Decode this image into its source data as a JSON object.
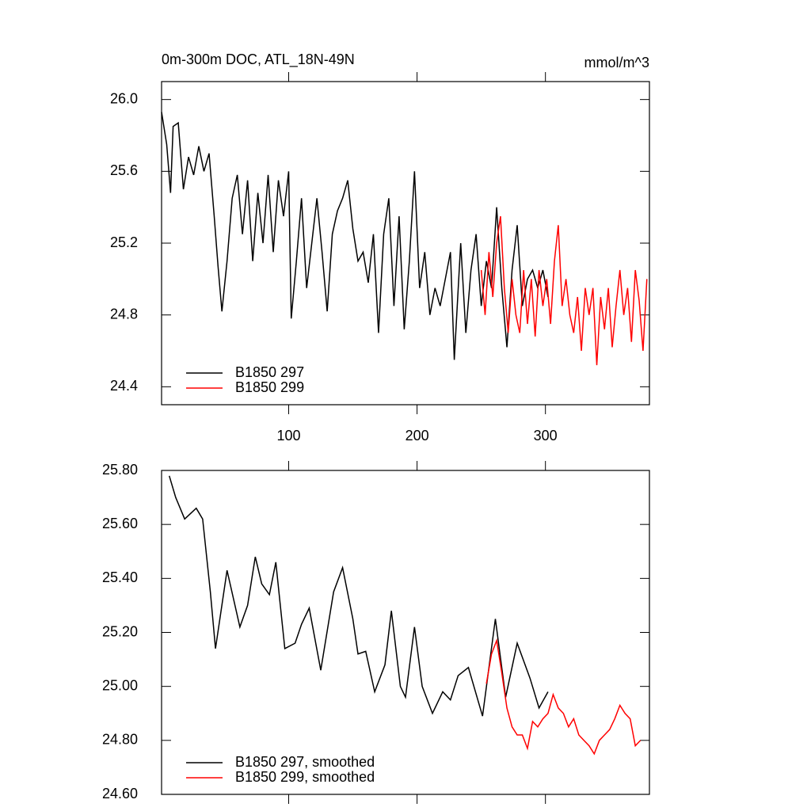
{
  "chart_data": [
    {
      "type": "line",
      "title": "0m-300m DOC, ATL_18N-49N",
      "unit": "mmol/m^3",
      "xlim": [
        1,
        381
      ],
      "xticks": [
        100,
        200,
        300
      ],
      "xtick_labels": true,
      "ylim": [
        24.3,
        26.1
      ],
      "yticks": [
        {
          "value": 24.4,
          "label": "24.4"
        },
        {
          "value": 24.8,
          "label": "24.8"
        },
        {
          "value": 25.2,
          "label": "25.2"
        },
        {
          "value": 25.6,
          "label": "25.6"
        },
        {
          "value": 26,
          "label": "26.0"
        }
      ],
      "legend": "lower left",
      "series": [
        {
          "name": "B1850 297",
          "color": "#000000",
          "x": [
            1,
            5,
            8,
            10,
            14,
            18,
            22,
            26,
            30,
            34,
            38,
            42,
            45,
            48,
            52,
            56,
            60,
            64,
            68,
            72,
            76,
            80,
            84,
            88,
            92,
            96,
            100,
            102,
            106,
            110,
            114,
            118,
            122,
            126,
            130,
            134,
            138,
            142,
            146,
            150,
            154,
            158,
            162,
            166,
            170,
            174,
            178,
            182,
            186,
            190,
            194,
            198,
            202,
            206,
            210,
            214,
            218,
            222,
            226,
            229,
            234,
            238,
            242,
            246,
            250,
            254,
            258,
            262,
            266,
            270,
            274,
            278,
            282,
            286,
            290,
            294,
            298,
            302
          ],
          "values": [
            25.93,
            25.75,
            25.48,
            25.85,
            25.87,
            25.5,
            25.68,
            25.58,
            25.74,
            25.6,
            25.7,
            25.35,
            25.07,
            24.82,
            25.1,
            25.45,
            25.58,
            25.25,
            25.55,
            25.1,
            25.48,
            25.2,
            25.58,
            25.15,
            25.55,
            25.35,
            25.6,
            24.78,
            25.1,
            25.45,
            24.95,
            25.2,
            25.45,
            25.15,
            24.82,
            25.25,
            25.38,
            25.45,
            25.55,
            25.28,
            25.1,
            25.15,
            24.98,
            25.25,
            24.7,
            25.25,
            25.45,
            24.85,
            25.35,
            24.72,
            25.1,
            25.6,
            24.95,
            25.15,
            24.8,
            24.95,
            24.85,
            25.0,
            25.15,
            24.55,
            25.2,
            24.7,
            25.05,
            25.25,
            24.85,
            25.1,
            24.95,
            25.4,
            24.95,
            24.62,
            25.05,
            25.3,
            24.85,
            25.0,
            25.05,
            24.95,
            25.05,
            24.9
          ]
        },
        {
          "name": "B1850 299",
          "color": "#ff0000",
          "x": [
            250,
            253,
            256,
            259,
            262,
            265,
            268,
            271,
            274,
            277,
            280,
            283,
            286,
            289,
            292,
            295,
            298,
            301,
            304,
            307,
            310,
            313,
            316,
            319,
            322,
            325,
            328,
            331,
            334,
            337,
            340,
            343,
            346,
            349,
            352,
            355,
            358,
            361,
            364,
            367,
            370,
            373,
            376,
            379
          ],
          "values": [
            25.05,
            24.8,
            25.15,
            24.9,
            25.2,
            25.35,
            24.95,
            24.7,
            25.0,
            24.8,
            24.7,
            25.05,
            24.75,
            25.0,
            24.68,
            25.05,
            24.85,
            25.0,
            24.75,
            25.1,
            25.3,
            24.85,
            25.0,
            24.8,
            24.7,
            24.9,
            24.6,
            24.95,
            24.8,
            24.95,
            24.52,
            24.9,
            24.72,
            24.95,
            24.62,
            24.85,
            25.05,
            24.8,
            24.95,
            24.65,
            25.05,
            24.88,
            24.6,
            25.0
          ]
        }
      ]
    },
    {
      "type": "line",
      "xlim": [
        1,
        381
      ],
      "xticks": [
        100,
        200,
        300
      ],
      "xtick_labels": false,
      "ylim": [
        24.6,
        25.8
      ],
      "yticks": [
        {
          "value": 24.6,
          "label": "24.60"
        },
        {
          "value": 24.8,
          "label": "24.80"
        },
        {
          "value": 25,
          "label": "25.00"
        },
        {
          "value": 25.2,
          "label": "25.20"
        },
        {
          "value": 25.4,
          "label": "25.40"
        },
        {
          "value": 25.6,
          "label": "25.60"
        },
        {
          "value": 25.8,
          "label": "25.80"
        }
      ],
      "legend": "lower left",
      "series": [
        {
          "name": "B1850 297, smoothed",
          "color": "#000000",
          "x": [
            7,
            12,
            19,
            28,
            33,
            39,
            43,
            52,
            62,
            68,
            74,
            79,
            85,
            90,
            97,
            105,
            110,
            116,
            125,
            135,
            142,
            150,
            154,
            160,
            167,
            175,
            180,
            187,
            191,
            198,
            204,
            212,
            220,
            226,
            232,
            240,
            251,
            261,
            269,
            278,
            288,
            295,
            302
          ],
          "values": [
            25.78,
            25.7,
            25.62,
            25.66,
            25.62,
            25.35,
            25.14,
            25.43,
            25.22,
            25.3,
            25.48,
            25.38,
            25.34,
            25.46,
            25.14,
            25.16,
            25.23,
            25.29,
            25.06,
            25.35,
            25.44,
            25.25,
            25.12,
            25.13,
            24.98,
            25.08,
            25.28,
            25.0,
            24.96,
            25.22,
            25.0,
            24.9,
            24.98,
            24.95,
            25.04,
            25.07,
            24.89,
            25.25,
            24.96,
            25.16,
            25.03,
            24.92,
            24.98
          ]
        },
        {
          "name": "B1850 299, smoothed",
          "color": "#ff0000",
          "x": [
            254,
            258,
            262,
            266,
            270,
            274,
            278,
            282,
            286,
            290,
            294,
            298,
            302,
            306,
            310,
            314,
            318,
            322,
            326,
            330,
            334,
            338,
            342,
            346,
            350,
            354,
            358,
            362,
            366,
            370,
            374
          ],
          "values": [
            25.01,
            25.12,
            25.17,
            25.05,
            24.92,
            24.85,
            24.82,
            24.82,
            24.77,
            24.87,
            24.85,
            24.88,
            24.9,
            24.97,
            24.92,
            24.9,
            24.85,
            24.88,
            24.82,
            24.8,
            24.78,
            24.75,
            24.8,
            24.82,
            24.84,
            24.88,
            24.93,
            24.9,
            24.88,
            24.78,
            24.8
          ]
        }
      ]
    }
  ]
}
